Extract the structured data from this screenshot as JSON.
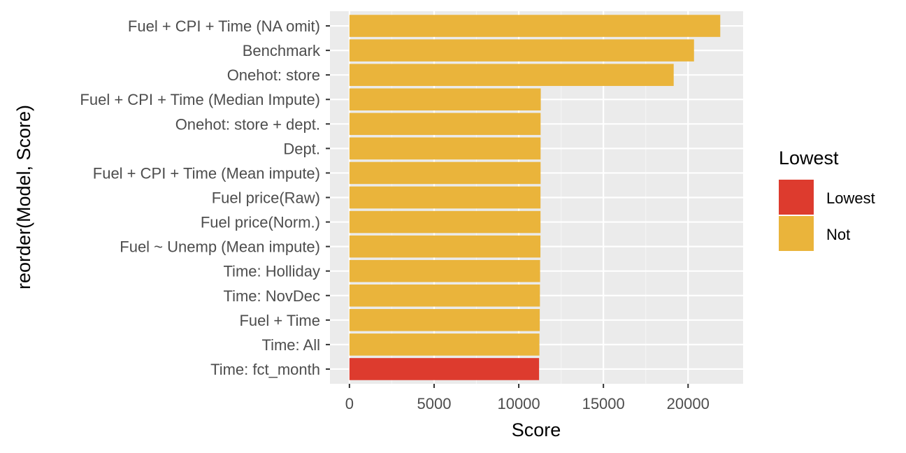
{
  "chart_data": {
    "type": "bar",
    "orientation": "horizontal",
    "xlabel": "Score",
    "ylabel": "reorder(Model, Score)",
    "xlim": [
      -1150,
      23250
    ],
    "x_ticks": [
      0,
      5000,
      10000,
      15000,
      20000
    ],
    "grid": true,
    "legend_position": "right",
    "categories": [
      "Fuel + CPI + Time (NA omit)",
      "Benchmark",
      "Onehot: store",
      "Fuel + CPI + Time (Median Impute)",
      "Onehot: store + dept.",
      "Dept.",
      "Fuel + CPI + Time (Mean impute)",
      "Fuel price(Raw)",
      "Fuel price(Norm.)",
      "Fuel ~ Unemp (Mean impute)",
      "Time: Holliday",
      "Time: NovDec",
      "Fuel + Time",
      "Time: All",
      "Time: fct_month"
    ],
    "values": [
      21900,
      20350,
      19150,
      11300,
      11290,
      11290,
      11290,
      11285,
      11285,
      11280,
      11260,
      11250,
      11240,
      11220,
      11200
    ],
    "groups": [
      "Not",
      "Not",
      "Not",
      "Not",
      "Not",
      "Not",
      "Not",
      "Not",
      "Not",
      "Not",
      "Not",
      "Not",
      "Not",
      "Not",
      "Lowest"
    ],
    "legend": {
      "title": "Lowest",
      "entries": [
        {
          "label": "Lowest",
          "color": "#DD3B2E"
        },
        {
          "label": "Not",
          "color": "#EAB43B"
        }
      ]
    },
    "colors": {
      "panel_background": "#EBEBEB",
      "grid_major": "#FFFFFF",
      "grid_minor": "#F5F5F5",
      "tick_text": "#4D4D4D",
      "tick_mark": "#333333"
    }
  }
}
